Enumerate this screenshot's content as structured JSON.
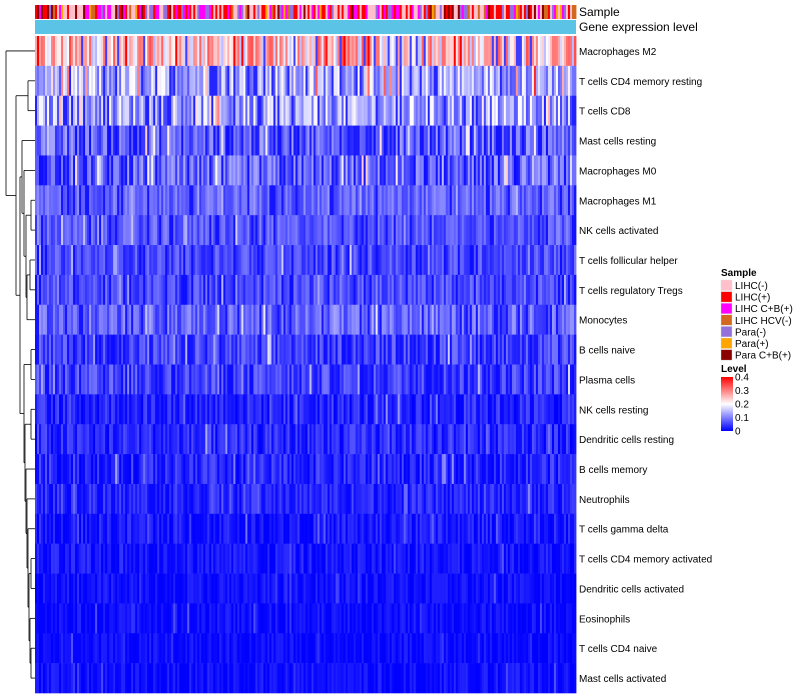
{
  "chart_data": {
    "type": "heatmap",
    "title": "",
    "annotation_rows": [
      {
        "label": "Sample",
        "kind": "categorical"
      },
      {
        "label": "Gene expression level",
        "kind": "uniform",
        "color": "#5bc4e6"
      }
    ],
    "rows": [
      {
        "label": "Macrophages M2",
        "mean": 0.24,
        "spread": 0.14
      },
      {
        "label": "T cells CD4 memory resting",
        "mean": 0.14,
        "spread": 0.11
      },
      {
        "label": "T cells CD8",
        "mean": 0.13,
        "spread": 0.11
      },
      {
        "label": "Mast cells resting",
        "mean": 0.07,
        "spread": 0.09
      },
      {
        "label": "Macrophages M0",
        "mean": 0.07,
        "spread": 0.09
      },
      {
        "label": "Macrophages M1",
        "mean": 0.08,
        "spread": 0.05
      },
      {
        "label": "NK cells activated",
        "mean": 0.07,
        "spread": 0.05
      },
      {
        "label": "T cells follicular helper",
        "mean": 0.06,
        "spread": 0.05
      },
      {
        "label": "T cells regulatory  Tregs",
        "mean": 0.06,
        "spread": 0.05
      },
      {
        "label": "Monocytes",
        "mean": 0.08,
        "spread": 0.06
      },
      {
        "label": "B cells naive",
        "mean": 0.05,
        "spread": 0.06
      },
      {
        "label": "Plasma cells",
        "mean": 0.05,
        "spread": 0.06
      },
      {
        "label": "NK cells resting",
        "mean": 0.03,
        "spread": 0.05
      },
      {
        "label": "Dendritic cells resting",
        "mean": 0.03,
        "spread": 0.05
      },
      {
        "label": "B cells memory",
        "mean": 0.03,
        "spread": 0.05
      },
      {
        "label": "Neutrophils",
        "mean": 0.03,
        "spread": 0.04
      },
      {
        "label": "T cells gamma delta",
        "mean": 0.02,
        "spread": 0.04
      },
      {
        "label": "T cells CD4 memory activated",
        "mean": 0.015,
        "spread": 0.04
      },
      {
        "label": "Dendritic cells activated",
        "mean": 0.012,
        "spread": 0.03
      },
      {
        "label": "Eosinophils",
        "mean": 0.01,
        "spread": 0.03
      },
      {
        "label": "T cells CD4 naive",
        "mean": 0.01,
        "spread": 0.03
      },
      {
        "label": "Mast cells activated",
        "mean": 0.01,
        "spread": 0.03
      }
    ],
    "n_samples": 270,
    "sample_groups": [
      {
        "name": "LIHC(-)",
        "color": "#ffc0cb"
      },
      {
        "name": "LIHC(+)",
        "color": "#ff0000"
      },
      {
        "name": "LIHC C+B(+)",
        "color": "#ff00ff"
      },
      {
        "name": "LIHC HCV(-)",
        "color": "#d2691e"
      },
      {
        "name": "Para(-)",
        "color": "#9370db"
      },
      {
        "name": "Para(+)",
        "color": "#ffa500"
      },
      {
        "name": "Para C+B(+)",
        "color": "#8b0000"
      }
    ],
    "color_scale": {
      "title": "Level",
      "min": 0,
      "max": 0.4,
      "stops": [
        {
          "value": 0,
          "color": "#0000ff"
        },
        {
          "value": 0.2,
          "color": "#ffffff"
        },
        {
          "value": 0.4,
          "color": "#ff0000"
        }
      ],
      "ticks": [
        "0.4",
        "0.3",
        "0.2",
        "0.1",
        "0"
      ]
    },
    "legend_sample_title": "Sample",
    "dendrogram": "rows",
    "legend_position": "right"
  }
}
